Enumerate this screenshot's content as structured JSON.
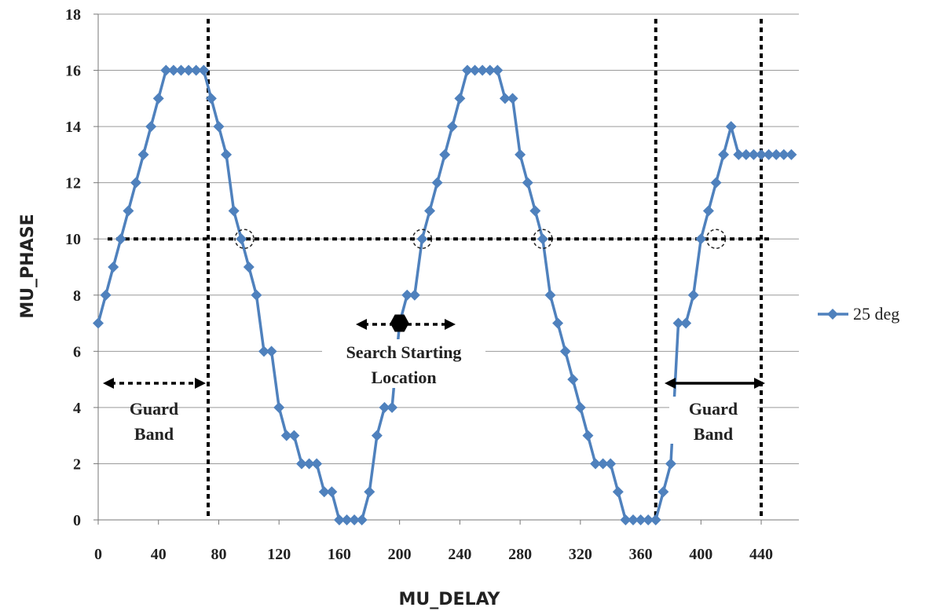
{
  "chart_data": {
    "type": "line",
    "xlabel": "MU_DELAY",
    "ylabel": "MU_PHASE",
    "xlim": [
      0,
      465
    ],
    "ylim": [
      0,
      18
    ],
    "x_ticks": [
      0,
      40,
      80,
      120,
      160,
      200,
      240,
      280,
      320,
      360,
      400,
      440
    ],
    "y_ticks": [
      0,
      2,
      4,
      6,
      8,
      10,
      12,
      14,
      16,
      18
    ],
    "grid": "horizontal",
    "legend_position": "right",
    "series": [
      {
        "name": "25 deg",
        "color": "#4f81bd",
        "marker": "diamond",
        "x": [
          0,
          5,
          10,
          15,
          20,
          25,
          30,
          35,
          40,
          45,
          50,
          55,
          60,
          65,
          70,
          75,
          80,
          85,
          90,
          95,
          100,
          105,
          110,
          115,
          120,
          125,
          130,
          135,
          140,
          145,
          150,
          155,
          160,
          165,
          170,
          175,
          180,
          185,
          190,
          195,
          200,
          205,
          210,
          215,
          220,
          225,
          230,
          235,
          240,
          245,
          250,
          255,
          260,
          265,
          270,
          275,
          280,
          285,
          290,
          295,
          300,
          305,
          310,
          315,
          320,
          325,
          330,
          335,
          340,
          345,
          350,
          355,
          360,
          365,
          370,
          375,
          380,
          385,
          390,
          395,
          400,
          405,
          410,
          415,
          420,
          425,
          430,
          435,
          440,
          445,
          450,
          455,
          460
        ],
        "y": [
          7,
          8,
          9,
          10,
          11,
          12,
          13,
          14,
          15,
          16,
          16,
          16,
          16,
          16,
          16,
          15,
          14,
          13,
          11,
          10,
          9,
          8,
          6,
          6,
          4,
          3,
          3,
          2,
          2,
          2,
          1,
          1,
          0,
          0,
          0,
          0,
          1,
          3,
          4,
          4,
          7,
          8,
          8,
          10,
          11,
          12,
          13,
          14,
          15,
          16,
          16,
          16,
          16,
          16,
          15,
          15,
          13,
          12,
          11,
          10,
          8,
          7,
          6,
          5,
          4,
          3,
          2,
          2,
          2,
          1,
          0,
          0,
          0,
          0,
          0,
          1,
          2,
          7,
          7,
          8,
          10,
          11,
          12,
          13,
          14,
          13,
          13,
          13,
          13,
          13,
          13,
          13,
          13
        ]
      }
    ],
    "threshold_y": 10,
    "vertical_lines_x": [
      73,
      370,
      440
    ],
    "crossing_points": [
      {
        "x": 97,
        "y": 10
      },
      {
        "x": 215,
        "y": 10
      },
      {
        "x": 295,
        "y": 10
      },
      {
        "x": 410,
        "y": 10
      }
    ],
    "search_start": {
      "x": 200,
      "y": 7
    },
    "annotations": {
      "guard_band_left": [
        "Guard",
        "Band"
      ],
      "guard_band_right": [
        "Guard",
        "Band"
      ],
      "search_start": [
        "Search Starting",
        "Location"
      ]
    }
  }
}
